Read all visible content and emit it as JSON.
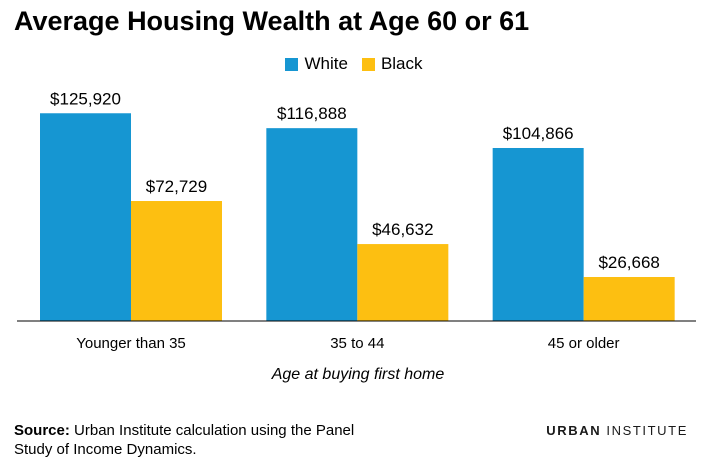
{
  "chart_data": {
    "type": "bar",
    "title": "Average Housing Wealth at Age 60 or 61",
    "xlabel": "Age at buying first home",
    "ylabel": "",
    "categories": [
      "Younger than 35",
      "35 to 44",
      "45 or older"
    ],
    "series": [
      {
        "name": "White",
        "color": "#1696d2",
        "values": [
          125920,
          116888,
          104866
        ],
        "labels": [
          "$125,920",
          "$116,888",
          "$104,866"
        ]
      },
      {
        "name": "Black",
        "color": "#fdbf11",
        "values": [
          72729,
          46632,
          26668
        ],
        "labels": [
          "$72,729",
          "$46,632",
          "$26,668"
        ]
      }
    ],
    "ylim": [
      0,
      140000
    ],
    "grid": false,
    "legend_position": "top-center"
  },
  "footer": {
    "source_label": "Source:",
    "source_text": "Urban Institute calculation using the Panel Study of Income Dynamics.",
    "brand_bold": "URBAN",
    "brand_rest": "INSTITUTE"
  }
}
